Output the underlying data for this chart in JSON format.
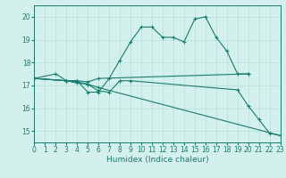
{
  "xlabel": "Humidex (Indice chaleur)",
  "xlim": [
    0,
    23
  ],
  "ylim": [
    14.5,
    20.5
  ],
  "xticks": [
    0,
    1,
    2,
    3,
    4,
    5,
    6,
    7,
    8,
    9,
    10,
    11,
    12,
    13,
    14,
    15,
    16,
    17,
    18,
    19,
    20,
    21,
    22,
    23
  ],
  "yticks": [
    15,
    16,
    17,
    18,
    19,
    20
  ],
  "bg_color": "#d4f0ec",
  "line_color": "#1a7a6e",
  "grid_color": "#b8ddd8",
  "line1_x": [
    0,
    2,
    3,
    4,
    5,
    6,
    7,
    8,
    9,
    10,
    11,
    12,
    13,
    14,
    15,
    16,
    17,
    18,
    19,
    20
  ],
  "line1_y": [
    17.3,
    17.5,
    17.2,
    17.2,
    16.7,
    16.7,
    17.3,
    18.1,
    18.9,
    19.55,
    19.55,
    19.1,
    19.1,
    18.9,
    19.9,
    20.0,
    19.1,
    18.5,
    17.5,
    17.5
  ],
  "line2_x": [
    0,
    3,
    4,
    5,
    6,
    20
  ],
  "line2_y": [
    17.3,
    17.2,
    17.2,
    17.15,
    17.3,
    17.5
  ],
  "line3_x": [
    0,
    3,
    4,
    5,
    6,
    23
  ],
  "line3_y": [
    17.3,
    17.2,
    17.1,
    17.05,
    16.9,
    14.8
  ],
  "line4_x": [
    0,
    3,
    4,
    5,
    6,
    7,
    8,
    9,
    19,
    20,
    21,
    22,
    23
  ],
  "line4_y": [
    17.3,
    17.2,
    17.15,
    17.05,
    16.75,
    16.7,
    17.2,
    17.2,
    16.8,
    16.1,
    15.5,
    14.9,
    14.8
  ]
}
